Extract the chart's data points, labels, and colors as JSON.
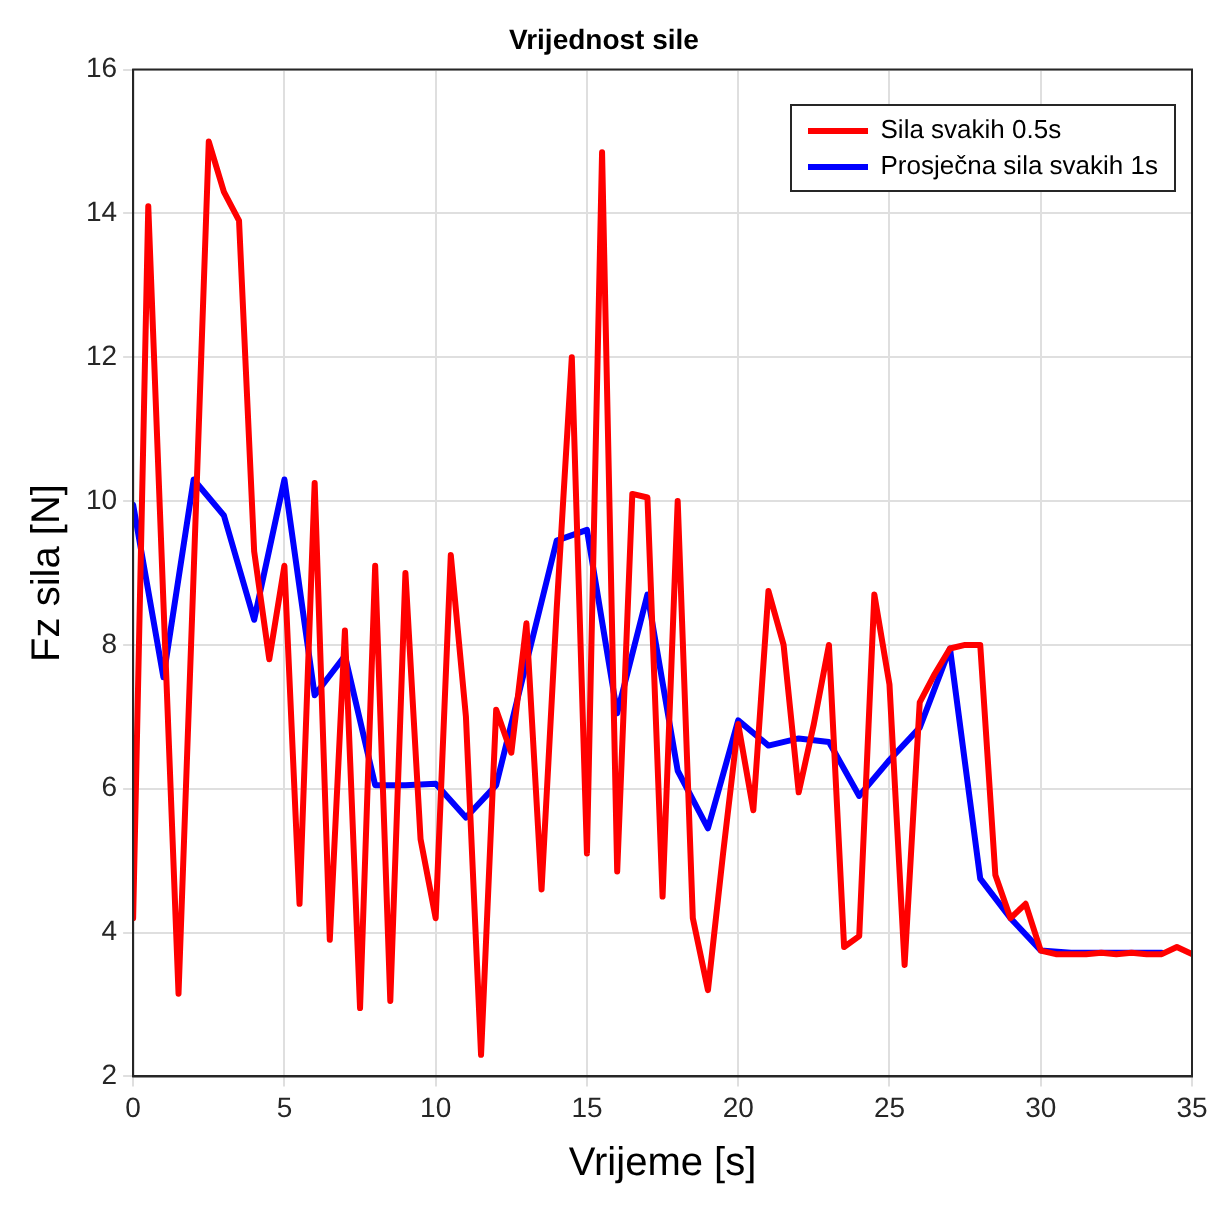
{
  "chart_data": {
    "type": "line",
    "title": "Vrijednost sile",
    "xlabel": "Vrijeme [s]",
    "ylabel": "Fz sila [N]",
    "xlim": [
      0,
      35
    ],
    "xticks": [
      0,
      5,
      10,
      15,
      20,
      25,
      30,
      35
    ],
    "ylim": [
      2,
      16
    ],
    "yticks": [
      2,
      4,
      6,
      8,
      10,
      12,
      14,
      16
    ],
    "grid": true,
    "legend": "top right",
    "marker": "none",
    "line_style": "solid",
    "series": [
      {
        "name": "Sila svakih 0.5s",
        "color": "#ff0000",
        "x": [
          0,
          0.5,
          1,
          1.5,
          2,
          2.5,
          3,
          3.5,
          4,
          4.5,
          5,
          5.5,
          6,
          6.5,
          7,
          7.5,
          8,
          8.5,
          9,
          9.5,
          10,
          10.5,
          11,
          11.5,
          12,
          12.5,
          13,
          13.5,
          14,
          14.5,
          15,
          15.5,
          16,
          16.5,
          17,
          17.5,
          18,
          18.5,
          19,
          19.5,
          20,
          20.5,
          21,
          21.5,
          22,
          22.5,
          23,
          23.5,
          24,
          24.5,
          25,
          25.5,
          26,
          26.5,
          27,
          27.5,
          28,
          28.5,
          29,
          29.5,
          30,
          30.5,
          31,
          31.5,
          32,
          32.5,
          33,
          33.5,
          34,
          34.5,
          35
        ],
        "values": [
          4.2,
          14.1,
          8.6,
          3.15,
          9,
          15,
          14.3,
          13.9,
          9.3,
          7.8,
          9.1,
          4.4,
          10.25,
          3.9,
          8.2,
          2.95,
          9.1,
          3.05,
          9,
          5.3,
          4.2,
          9.25,
          7,
          2.3,
          7.1,
          6.5,
          8.3,
          4.6,
          8.5,
          12,
          5.1,
          14.85,
          4.85,
          10.1,
          10.05,
          4.5,
          10,
          4.2,
          3.2,
          5.1,
          6.9,
          5.7,
          8.75,
          8,
          5.95,
          6.9,
          8,
          3.8,
          3.95,
          8.7,
          7.45,
          3.55,
          7.2,
          7.6,
          7.95,
          8,
          8,
          4.8,
          4.2,
          4.4,
          3.75,
          3.7,
          3.7,
          3.7,
          3.72,
          3.7,
          3.72,
          3.7,
          3.7,
          3.8,
          3.7
        ]
      },
      {
        "name": "Prosječna sila svakih 1s",
        "color": "#0000ff",
        "x": [
          0,
          1,
          2,
          3,
          4,
          5,
          6,
          7,
          8,
          9,
          10,
          11,
          12,
          13,
          14,
          15,
          16,
          17,
          18,
          19,
          20,
          21,
          22,
          23,
          24,
          25,
          26,
          27,
          28,
          29,
          30,
          31,
          32,
          33,
          34
        ],
        "values": [
          9.95,
          7.55,
          10.3,
          9.8,
          8.35,
          10.3,
          7.3,
          7.85,
          6.05,
          6.05,
          6.07,
          5.6,
          6.05,
          7.75,
          9.45,
          9.6,
          7.05,
          8.7,
          6.25,
          5.45,
          6.95,
          6.6,
          6.7,
          6.65,
          5.9,
          6.4,
          6.85,
          7.95,
          4.75,
          4.2,
          3.75,
          3.72,
          3.72,
          3.72,
          3.72
        ]
      }
    ]
  }
}
